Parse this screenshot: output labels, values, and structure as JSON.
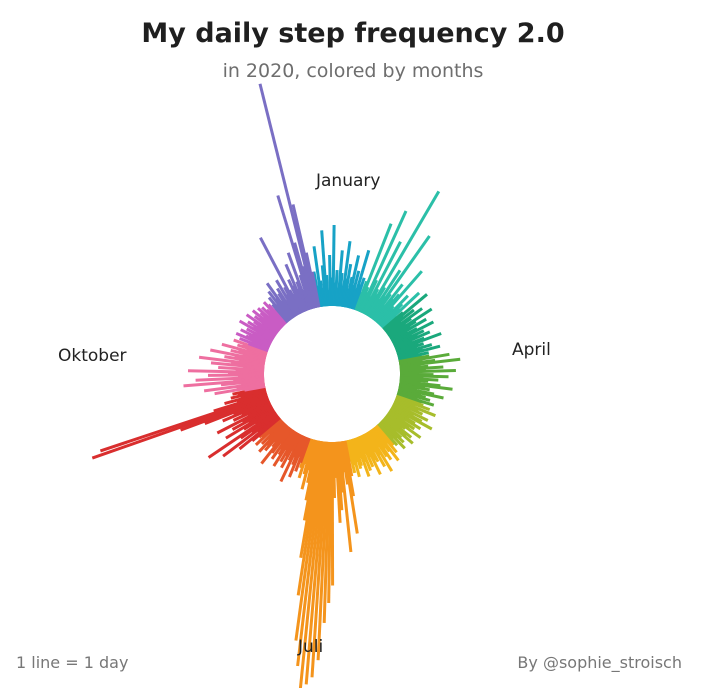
{
  "title": "My daily step frequency 2.0",
  "subtitle": "in 2020, colored by months",
  "footer": {
    "legend_note": "1 line = 1 day",
    "credit": "By @sophie_stroisch"
  },
  "month_labels": {
    "january": "January",
    "april": "April",
    "july": "Juli",
    "october": "Oktober"
  },
  "chart_data": {
    "type": "radial_bar",
    "title": "My daily step frequency 2.0",
    "subtitle": "in 2020, colored by months",
    "series_scale": {
      "min_relative": 0.0,
      "max_relative": 1.0
    },
    "months": [
      {
        "month": 1,
        "color": "#17a2c6",
        "values": [
          0.12,
          0.06,
          0.22,
          0.08,
          0.05,
          0.14,
          0.28,
          0.1,
          0.04,
          0.18,
          0.09,
          0.3,
          0.07,
          0.12,
          0.05,
          0.2,
          0.11,
          0.06,
          0.24,
          0.09,
          0.15,
          0.05,
          0.1,
          0.19,
          0.07,
          0.13,
          0.06,
          0.22,
          0.08,
          0.11,
          0.05
        ]
      },
      {
        "month": 2,
        "color": "#2bbfa8",
        "values": [
          0.1,
          0.35,
          0.08,
          0.06,
          0.42,
          0.12,
          0.05,
          0.3,
          0.09,
          0.07,
          0.55,
          0.11,
          0.06,
          0.2,
          0.08,
          0.38,
          0.1,
          0.05,
          0.16,
          0.09,
          0.12,
          0.25,
          0.07,
          0.06,
          0.14,
          0.1,
          0.08,
          0.18,
          0.05
        ]
      },
      {
        "month": 3,
        "color": "#1aa87c",
        "values": [
          0.08,
          0.2,
          0.07,
          0.12,
          0.05,
          0.15,
          0.09,
          0.06,
          0.18,
          0.1,
          0.07,
          0.14,
          0.05,
          0.09,
          0.16,
          0.06,
          0.11,
          0.08,
          0.13,
          0.05,
          0.1,
          0.17,
          0.07,
          0.09,
          0.06,
          0.12,
          0.08,
          0.15,
          0.06,
          0.1,
          0.07
        ]
      },
      {
        "month": 4,
        "color": "#5aab3a",
        "values": [
          0.1,
          0.18,
          0.07,
          0.12,
          0.22,
          0.06,
          0.09,
          0.15,
          0.08,
          0.2,
          0.05,
          0.11,
          0.17,
          0.07,
          0.13,
          0.09,
          0.06,
          0.14,
          0.19,
          0.08,
          0.1,
          0.05,
          0.12,
          0.16,
          0.07,
          0.09,
          0.11,
          0.06,
          0.13,
          0.08
        ]
      },
      {
        "month": 5,
        "color": "#a7bd2b",
        "values": [
          0.09,
          0.12,
          0.06,
          0.15,
          0.08,
          0.1,
          0.05,
          0.13,
          0.07,
          0.11,
          0.16,
          0.06,
          0.09,
          0.12,
          0.05,
          0.1,
          0.08,
          0.14,
          0.07,
          0.06,
          0.11,
          0.09,
          0.13,
          0.05,
          0.08,
          0.1,
          0.07,
          0.12,
          0.06,
          0.09,
          0.08
        ]
      },
      {
        "month": 6,
        "color": "#f3b41a",
        "values": [
          0.08,
          0.11,
          0.06,
          0.14,
          0.09,
          0.07,
          0.12,
          0.1,
          0.05,
          0.16,
          0.08,
          0.13,
          0.06,
          0.1,
          0.09,
          0.15,
          0.07,
          0.11,
          0.05,
          0.12,
          0.08,
          0.14,
          0.06,
          0.09,
          0.1,
          0.07,
          0.13,
          0.08,
          0.11,
          0.06
        ]
      },
      {
        "month": 7,
        "color": "#f4941c",
        "values": [
          0.12,
          0.2,
          0.35,
          0.15,
          0.1,
          0.42,
          0.18,
          0.25,
          0.3,
          0.12,
          0.2,
          0.55,
          0.62,
          0.7,
          0.85,
          0.92,
          0.95,
          1.0,
          0.88,
          0.78,
          0.6,
          0.45,
          0.3,
          0.22,
          0.15,
          0.1,
          0.18,
          0.12,
          0.08,
          0.14,
          0.1
        ]
      },
      {
        "month": 8,
        "color": "#e6572a",
        "values": [
          0.08,
          0.12,
          0.06,
          0.15,
          0.1,
          0.07,
          0.18,
          0.09,
          0.05,
          0.13,
          0.08,
          0.11,
          0.06,
          0.14,
          0.09,
          0.07,
          0.12,
          0.05,
          0.1,
          0.16,
          0.08,
          0.06,
          0.11,
          0.09,
          0.13,
          0.07,
          0.1,
          0.05,
          0.12,
          0.08,
          0.09
        ]
      },
      {
        "month": 9,
        "color": "#d92e2e",
        "values": [
          0.12,
          0.18,
          0.08,
          0.25,
          0.1,
          0.15,
          0.3,
          0.07,
          0.12,
          0.2,
          0.09,
          0.16,
          0.11,
          0.22,
          0.08,
          0.14,
          0.1,
          0.18,
          0.13,
          0.25,
          0.35,
          0.72,
          0.68,
          0.2,
          0.1,
          0.15,
          0.08,
          0.12,
          0.09,
          0.11
        ]
      },
      {
        "month": 10,
        "color": "#ee6fa0",
        "values": [
          0.06,
          0.18,
          0.09,
          0.22,
          0.07,
          0.15,
          0.3,
          0.1,
          0.25,
          0.08,
          0.2,
          0.12,
          0.28,
          0.09,
          0.16,
          0.06,
          0.19,
          0.11,
          0.24,
          0.08,
          0.14,
          0.1,
          0.2,
          0.07,
          0.12,
          0.09,
          0.16,
          0.06,
          0.1,
          0.08,
          0.12
        ]
      },
      {
        "month": 11,
        "color": "#c95cc4",
        "values": [
          0.06,
          0.1,
          0.05,
          0.12,
          0.08,
          0.07,
          0.11,
          0.06,
          0.09,
          0.05,
          0.13,
          0.07,
          0.1,
          0.06,
          0.08,
          0.12,
          0.05,
          0.09,
          0.07,
          0.11,
          0.06,
          0.08,
          0.1,
          0.05,
          0.09,
          0.07,
          0.06,
          0.1,
          0.08,
          0.05
        ]
      },
      {
        "month": 12,
        "color": "#7a6fc4",
        "values": [
          0.07,
          0.1,
          0.06,
          0.12,
          0.08,
          0.15,
          0.06,
          0.09,
          0.11,
          0.05,
          0.14,
          0.07,
          0.1,
          0.32,
          0.08,
          0.06,
          0.12,
          0.09,
          0.18,
          0.07,
          0.1,
          0.22,
          0.06,
          0.12,
          0.45,
          0.25,
          0.15,
          0.9,
          0.4,
          0.2,
          0.12
        ]
      }
    ]
  }
}
